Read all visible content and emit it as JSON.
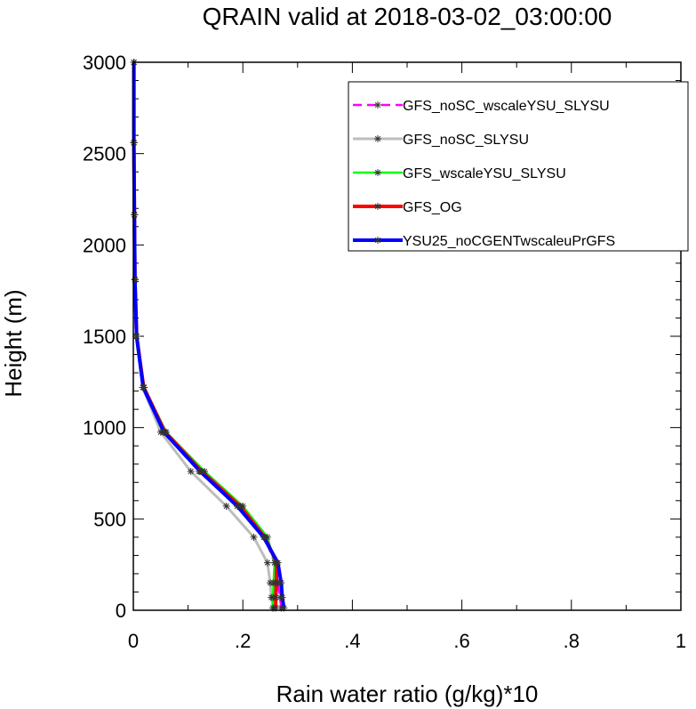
{
  "chart_data": {
    "type": "line",
    "title": "QRAIN valid at 2018-03-02_03:00:00",
    "xlabel": "Rain water ratio (g/kg)*10",
    "ylabel": "Height (m)",
    "xlim": [
      0,
      1
    ],
    "ylim": [
      0,
      3000
    ],
    "x_ticks": [
      0,
      0.2,
      0.4,
      0.6,
      0.8,
      1
    ],
    "x_tick_labels": [
      "0",
      ".2",
      ".4",
      ".6",
      ".8",
      "1"
    ],
    "y_ticks": [
      0,
      500,
      1000,
      1500,
      2000,
      2500,
      3000
    ],
    "y_tick_labels": [
      "0",
      "500",
      "1000",
      "1500",
      "2000",
      "2500",
      "3000"
    ],
    "grid": false,
    "legend_position": "top-right",
    "series": [
      {
        "name": "GFS_noSC_wscaleYSU_SLYSU",
        "color": "#ff00ff",
        "dash": "dashed",
        "points": [
          [
            0.27,
            12
          ],
          [
            0.268,
            70
          ],
          [
            0.264,
            150
          ],
          [
            0.258,
            260
          ],
          [
            0.24,
            400
          ],
          [
            0.19,
            570
          ],
          [
            0.12,
            760
          ],
          [
            0.055,
            975
          ],
          [
            0.018,
            1220
          ],
          [
            0.006,
            1500
          ],
          [
            0.003,
            1810
          ],
          [
            0.002,
            2165
          ],
          [
            0.001,
            2560
          ],
          [
            0.001,
            3000
          ]
        ]
      },
      {
        "name": "GFS_noSC_SLYSU",
        "color": "#bdbdbd",
        "dash": "solid",
        "points": [
          [
            0.255,
            12
          ],
          [
            0.252,
            70
          ],
          [
            0.25,
            150
          ],
          [
            0.245,
            260
          ],
          [
            0.22,
            400
          ],
          [
            0.17,
            570
          ],
          [
            0.105,
            760
          ],
          [
            0.05,
            975
          ],
          [
            0.017,
            1220
          ],
          [
            0.005,
            1500
          ],
          [
            0.003,
            1810
          ],
          [
            0.002,
            2165
          ],
          [
            0.001,
            2560
          ],
          [
            0.001,
            3000
          ]
        ]
      },
      {
        "name": "GFS_wscaleYSU_SLYSU",
        "color": "#00ff00",
        "dash": "solid",
        "points": [
          [
            0.255,
            12
          ],
          [
            0.255,
            70
          ],
          [
            0.256,
            150
          ],
          [
            0.258,
            260
          ],
          [
            0.245,
            400
          ],
          [
            0.2,
            570
          ],
          [
            0.13,
            760
          ],
          [
            0.06,
            975
          ],
          [
            0.02,
            1220
          ],
          [
            0.006,
            1500
          ],
          [
            0.003,
            1810
          ],
          [
            0.002,
            2165
          ],
          [
            0.001,
            2560
          ],
          [
            0.001,
            3000
          ]
        ]
      },
      {
        "name": "GFS_OG",
        "color": "#ff0000",
        "dash": "solid",
        "points": [
          [
            0.26,
            12
          ],
          [
            0.26,
            70
          ],
          [
            0.261,
            150
          ],
          [
            0.262,
            260
          ],
          [
            0.24,
            400
          ],
          [
            0.195,
            570
          ],
          [
            0.125,
            760
          ],
          [
            0.058,
            975
          ],
          [
            0.019,
            1220
          ],
          [
            0.006,
            1500
          ],
          [
            0.003,
            1810
          ],
          [
            0.002,
            2165
          ],
          [
            0.001,
            2560
          ],
          [
            0.001,
            3000
          ]
        ]
      },
      {
        "name": "YSU25_noCGENTwscaleuPrGFS",
        "color": "#0000ff",
        "dash": "solid",
        "points": [
          [
            0.275,
            12
          ],
          [
            0.272,
            70
          ],
          [
            0.27,
            150
          ],
          [
            0.264,
            260
          ],
          [
            0.238,
            400
          ],
          [
            0.19,
            570
          ],
          [
            0.122,
            760
          ],
          [
            0.056,
            975
          ],
          [
            0.018,
            1220
          ],
          [
            0.006,
            1500
          ],
          [
            0.003,
            1810
          ],
          [
            0.002,
            2165
          ],
          [
            0.001,
            2560
          ],
          [
            0.001,
            3000
          ]
        ]
      }
    ]
  }
}
